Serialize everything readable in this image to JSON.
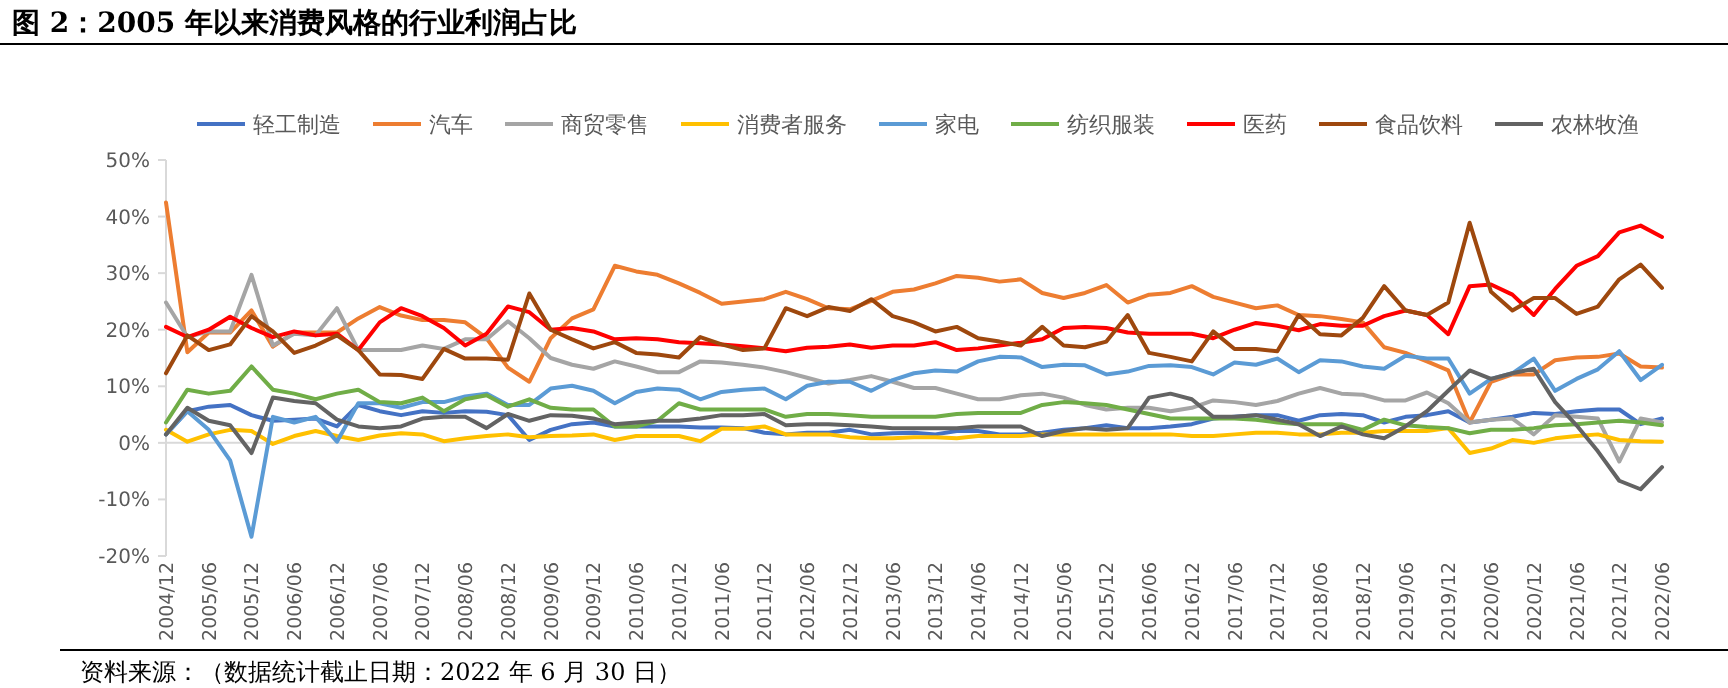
{
  "chart_data": {
    "type": "line",
    "title": "图 2：2005 年以来消费风格的行业利润占比",
    "annotations": [
      "资料来源：（数据统计截止日期：2022 年 6 月 30 日）"
    ],
    "categories": [
      "2004/12",
      null,
      "2005/06",
      null,
      "2005/12",
      null,
      "2006/06",
      null,
      "2006/12",
      null,
      "2007/06",
      null,
      "2007/12",
      null,
      "2008/06",
      null,
      "2008/12",
      null,
      "2009/06",
      null,
      "2009/12",
      null,
      "2010/06",
      null,
      "2010/12",
      null,
      "2011/06",
      null,
      "2011/12",
      null,
      "2012/06",
      null,
      "2012/12",
      null,
      "2013/06",
      null,
      "2013/12",
      null,
      "2014/06",
      null,
      "2014/12",
      null,
      "2015/06",
      null,
      "2015/12",
      null,
      "2016/06",
      null,
      "2016/12",
      null,
      "2017/06",
      null,
      "2017/12",
      null,
      "2018/06",
      null,
      "2018/12",
      null,
      "2019/06",
      null,
      "2019/12",
      null,
      "2020/06",
      null,
      "2020/12",
      null,
      "2021/06",
      null,
      "2021/12",
      null,
      "2022/06"
    ],
    "ylim": [
      -20,
      50
    ],
    "yticks": [
      {
        "value": -20,
        "label": "-20%"
      },
      {
        "value": -10,
        "label": "-10%"
      },
      {
        "value": 0,
        "label": "0%"
      },
      {
        "value": 10,
        "label": "10%"
      },
      {
        "value": 20,
        "label": "20%"
      },
      {
        "value": 30,
        "label": "30%"
      },
      {
        "value": 40,
        "label": "40%"
      },
      {
        "value": 50,
        "label": "50%"
      }
    ],
    "legend": "top",
    "series": [
      {
        "name": "轻工制造",
        "color": "#4472c4",
        "values": [
          1.5,
          5.6,
          6.4,
          6.7,
          4.9,
          3.9,
          4.1,
          4.3,
          2.9,
          6.7,
          5.6,
          4.9,
          5.6,
          5.3,
          5.6,
          5.5,
          4.9,
          0.5,
          2.3,
          3.3,
          3.6,
          2.9,
          2.9,
          2.9,
          2.9,
          2.7,
          2.7,
          2.6,
          1.8,
          1.5,
          1.8,
          1.8,
          2.3,
          1.5,
          1.7,
          1.8,
          1.5,
          2.1,
          2.1,
          1.5,
          1.5,
          1.8,
          2.3,
          2.6,
          3.1,
          2.6,
          2.6,
          2.9,
          3.3,
          4.3,
          4.6,
          4.9,
          4.9,
          3.9,
          4.9,
          5.1,
          4.9,
          3.6,
          4.6,
          4.9,
          5.6,
          3.6,
          4.1,
          4.6,
          5.3,
          5.1,
          5.6,
          5.9,
          5.9,
          3.3,
          4.3
        ]
      },
      {
        "name": "汽车",
        "color": "#ed7d31",
        "values": [
          42.5,
          16,
          19.5,
          19.5,
          23.4,
          17,
          19.5,
          19.5,
          19.5,
          22,
          24,
          22.5,
          21.7,
          21.7,
          21.3,
          18.5,
          13.3,
          10.8,
          18.5,
          22,
          23.6,
          31.3,
          30.3,
          29.7,
          28.2,
          26.5,
          24.6,
          25,
          25.4,
          26.7,
          25.4,
          23.8,
          23.6,
          25.1,
          26.7,
          27.1,
          28.2,
          29.5,
          29.2,
          28.5,
          28.9,
          26.5,
          25.6,
          26.5,
          27.9,
          24.8,
          26.2,
          26.5,
          27.7,
          25.8,
          24.8,
          23.8,
          24.3,
          22.6,
          22.4,
          21.9,
          21.3,
          16.9,
          15.9,
          14.4,
          12.8,
          3.6,
          10.8,
          12.1,
          12.1,
          14.6,
          15.1,
          15.2,
          15.8,
          13.5,
          13.3
        ]
      },
      {
        "name": "商贸零售",
        "color": "#a5a5a5",
        "values": [
          24.8,
          18.7,
          19.7,
          19.7,
          29.7,
          17.2,
          19.3,
          19,
          23.8,
          16.4,
          16.4,
          16.4,
          17.2,
          16.6,
          18.3,
          18.3,
          21.5,
          18.5,
          15,
          13.8,
          13.1,
          14.4,
          13.5,
          12.5,
          12.5,
          14.4,
          14.2,
          13.8,
          13.3,
          12.5,
          11.5,
          10.5,
          11.1,
          11.8,
          10.8,
          9.7,
          9.7,
          8.7,
          7.7,
          7.7,
          8.4,
          8.7,
          8,
          6.7,
          5.9,
          6.2,
          6.2,
          5.6,
          6.2,
          7.5,
          7.2,
          6.7,
          7.4,
          8.7,
          9.7,
          8.7,
          8.5,
          7.5,
          7.5,
          8.9,
          7,
          3.6,
          4.1,
          4.3,
          1.5,
          4.9,
          4.6,
          4.3,
          -3.3,
          4.3,
          3.6
        ]
      },
      {
        "name": "消费者服务",
        "color": "#ffc000",
        "values": [
          2.3,
          0.2,
          1.5,
          2.3,
          2.1,
          -0.2,
          1.2,
          2.1,
          1.2,
          0.5,
          1.3,
          1.7,
          1.5,
          0.3,
          0.8,
          1.2,
          1.5,
          1,
          1.2,
          1.3,
          1.5,
          0.5,
          1.2,
          1.2,
          1.2,
          0.3,
          2.5,
          2.5,
          2.9,
          1.5,
          1.5,
          1.5,
          1,
          0.8,
          0.8,
          1,
          1,
          0.8,
          1.2,
          1.2,
          1.2,
          1.5,
          1.5,
          1.5,
          1.5,
          1.5,
          1.5,
          1.5,
          1.2,
          1.2,
          1.5,
          1.8,
          1.8,
          1.5,
          1.5,
          1.8,
          1.8,
          2.1,
          2.1,
          2.1,
          2.6,
          -1.8,
          -1,
          0.5,
          0,
          0.8,
          1.2,
          1.5,
          0.5,
          0.3,
          0.2
        ]
      },
      {
        "name": "家电",
        "color": "#5b9bd5",
        "values": [
          1.5,
          5.6,
          2.3,
          -3.1,
          -16.6,
          4.6,
          3.6,
          4.6,
          0.2,
          7,
          7,
          6.2,
          7.2,
          7.2,
          8.2,
          8.7,
          6.7,
          6.7,
          9.6,
          10.1,
          9.2,
          7,
          9,
          9.6,
          9.4,
          7.7,
          9,
          9.4,
          9.6,
          7.7,
          10.1,
          10.8,
          10.8,
          9.2,
          11.1,
          12.3,
          12.8,
          12.6,
          14.4,
          15.2,
          15.1,
          13.4,
          13.8,
          13.7,
          12.1,
          12.6,
          13.6,
          13.7,
          13.4,
          12.1,
          14.2,
          13.8,
          14.9,
          12.5,
          14.6,
          14.4,
          13.5,
          13.1,
          15.4,
          14.9,
          14.9,
          8.7,
          11.3,
          12.3,
          14.9,
          9.2,
          11.3,
          13,
          16.2,
          11.1,
          13.8
        ]
      },
      {
        "name": "纺织服装",
        "color": "#70ad47",
        "values": [
          3.6,
          9.4,
          8.7,
          9.2,
          13.5,
          9.4,
          8.7,
          7.7,
          8.7,
          9.4,
          7.2,
          7,
          8,
          5.6,
          7.7,
          8.4,
          6.4,
          7.7,
          6.2,
          5.9,
          5.9,
          2.9,
          2.9,
          3.9,
          7,
          5.9,
          5.9,
          5.9,
          5.9,
          4.6,
          5.1,
          5.1,
          4.9,
          4.6,
          4.6,
          4.6,
          4.6,
          5.1,
          5.3,
          5.3,
          5.3,
          6.7,
          7.2,
          7,
          6.7,
          5.9,
          5.1,
          4.3,
          4.3,
          4.3,
          4.3,
          4.1,
          3.6,
          3.3,
          3.3,
          3.3,
          2.3,
          4.1,
          3.1,
          2.8,
          2.6,
          1.7,
          2.3,
          2.3,
          2.6,
          3.1,
          3.3,
          3.6,
          3.9,
          3.6,
          3.1
        ]
      },
      {
        "name": "医药",
        "color": "#ff0000",
        "values": [
          20.5,
          18.7,
          20,
          22.3,
          20.3,
          18.7,
          19.7,
          19,
          19.3,
          16.4,
          21.3,
          23.8,
          22.4,
          20.3,
          17.2,
          19.3,
          24.1,
          23.1,
          20,
          20.3,
          19.7,
          18.3,
          18.5,
          18.3,
          17.8,
          17.6,
          17.4,
          17.1,
          16.7,
          16.2,
          16.8,
          17,
          17.4,
          16.8,
          17.2,
          17.2,
          17.8,
          16.4,
          16.7,
          17.2,
          17.7,
          18.3,
          20.3,
          20.5,
          20.3,
          19.5,
          19.3,
          19.3,
          19.3,
          18.5,
          20,
          21.2,
          20.7,
          19.9,
          21,
          20.7,
          20.7,
          22.4,
          23.4,
          22.6,
          19.2,
          27.7,
          28,
          26.2,
          22.6,
          27.2,
          31.3,
          33,
          37.2,
          38.4,
          36.4
        ]
      },
      {
        "name": "食品饮料",
        "color": "#9e480e",
        "values": [
          12.3,
          19,
          16.4,
          17.4,
          22.4,
          19.7,
          15.9,
          17.2,
          19,
          16.4,
          12.1,
          12,
          11.3,
          16.6,
          14.9,
          14.9,
          14.7,
          26.4,
          20,
          18.3,
          16.7,
          17.8,
          15.9,
          15.6,
          15.1,
          18.7,
          17.4,
          16.4,
          16.7,
          23.8,
          22.4,
          24,
          23.3,
          25.4,
          22.4,
          21.3,
          19.7,
          20.5,
          18.5,
          17.9,
          17.2,
          20.5,
          17.2,
          16.9,
          17.9,
          22.6,
          15.9,
          15.2,
          14.4,
          19.7,
          16.6,
          16.6,
          16.2,
          22.6,
          19.2,
          19,
          22.1,
          27.7,
          23.4,
          22.6,
          24.8,
          38.9,
          26.7,
          23.4,
          25.6,
          25.6,
          22.8,
          24.1,
          28.9,
          31.5,
          27.4
        ]
      },
      {
        "name": "农林牧渔",
        "color": "#636363",
        "values": [
          1.5,
          6.2,
          3.9,
          3.1,
          -1.8,
          8,
          7.4,
          7,
          4.1,
          2.9,
          2.6,
          2.9,
          4.3,
          4.6,
          4.6,
          2.6,
          5.1,
          3.9,
          4.9,
          4.8,
          4.3,
          3.3,
          3.6,
          3.9,
          3.9,
          4.3,
          4.9,
          4.9,
          5.1,
          3.1,
          3.3,
          3.3,
          3.1,
          2.9,
          2.6,
          2.6,
          2.6,
          2.6,
          2.9,
          2.9,
          2.9,
          1.2,
          2.1,
          2.6,
          2.3,
          2.6,
          8,
          8.7,
          7.7,
          4.6,
          4.6,
          4.9,
          4.1,
          3.3,
          1.2,
          2.9,
          1.5,
          0.8,
          2.9,
          5.6,
          9.2,
          12.8,
          11.3,
          12.3,
          13.1,
          7.2,
          3.1,
          -1.5,
          -6.7,
          -8.2,
          -4.3
        ]
      }
    ]
  }
}
